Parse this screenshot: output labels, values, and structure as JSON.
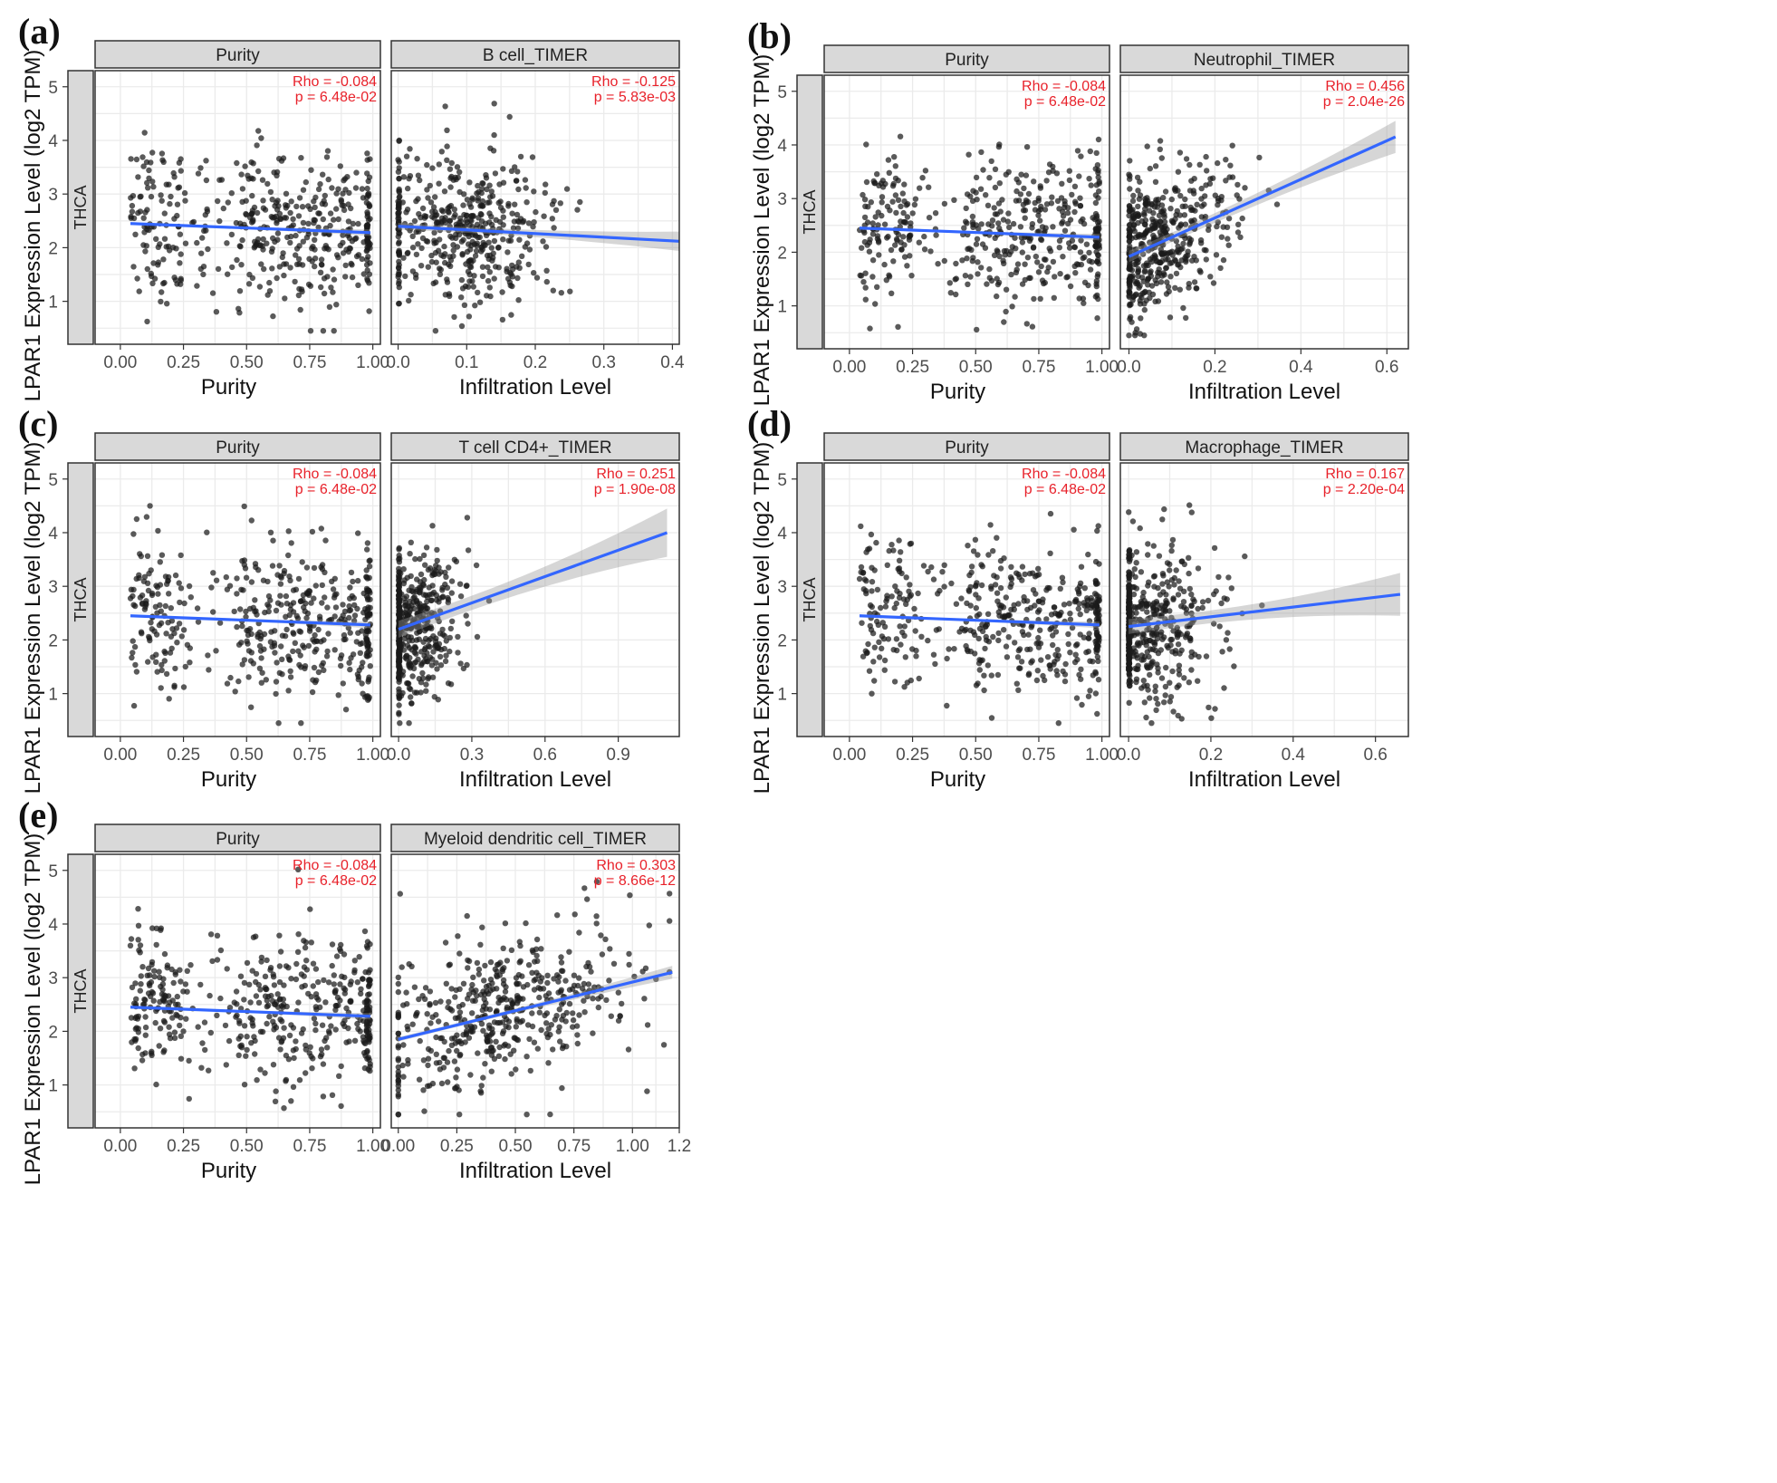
{
  "figure": {
    "row_strip_label": "THCA",
    "y_axis_title": "LPAR1 Expression Level (log2 TPM)",
    "colors": {
      "points": "#1a1a1a",
      "regression_line": "#3366ff",
      "confidence_band": "#999999",
      "stat_text": "#e8212a",
      "strip_fill": "#d9d9d9",
      "grid": "#ebebeb"
    }
  },
  "chart_data": [
    {
      "type": "scatter",
      "panel_label": "(a)",
      "y_ticks": [
        "1",
        "2",
        "3",
        "4",
        "5"
      ],
      "ylim": [
        0.2,
        5.3
      ],
      "grid": true,
      "facets": [
        {
          "title": "Purity",
          "xlabel": "Purity",
          "x_ticks": [
            "0.00",
            "0.25",
            "0.50",
            "0.75",
            "1.00"
          ],
          "xlim": [
            -0.1,
            1.03
          ],
          "x_tick_values": [
            0,
            0.25,
            0.5,
            0.75,
            1.0
          ],
          "rho": "Rho = -0.084",
          "p": "p = 6.48e-02",
          "fit": {
            "x0": 0.04,
            "y0": 2.45,
            "x1": 0.99,
            "y1": 2.28,
            "band": 0.06
          },
          "cluster": "purity"
        },
        {
          "title": "B cell_TIMER",
          "xlabel": "Infiltration Level",
          "x_ticks": [
            "0.0",
            "0.1",
            "0.2",
            "0.3",
            "0.4"
          ],
          "x_tick_values": [
            0,
            0.1,
            0.2,
            0.3,
            0.4
          ],
          "xlim": [
            -0.01,
            0.41
          ],
          "rho": "Rho = -0.125",
          "p": "p = 5.83e-03",
          "fit": {
            "x0": 0.0,
            "y0": 2.4,
            "x1": 0.41,
            "y1": 2.12,
            "band": 0.18
          },
          "cluster": "bcell"
        }
      ]
    },
    {
      "type": "scatter",
      "panel_label": "(b)",
      "y_ticks": [
        "1",
        "2",
        "3",
        "4",
        "5"
      ],
      "ylim": [
        0.2,
        5.3
      ],
      "grid": true,
      "facets": [
        {
          "title": "Purity",
          "xlabel": "Purity",
          "x_ticks": [
            "0.00",
            "0.25",
            "0.50",
            "0.75",
            "1.00"
          ],
          "x_tick_values": [
            0,
            0.25,
            0.5,
            0.75,
            1.0
          ],
          "xlim": [
            -0.1,
            1.03
          ],
          "rho": "Rho = -0.084",
          "p": "p = 6.48e-02",
          "fit": {
            "x0": 0.04,
            "y0": 2.45,
            "x1": 0.99,
            "y1": 2.28,
            "band": 0.06
          },
          "cluster": "purity"
        },
        {
          "title": "Neutrophil_TIMER",
          "xlabel": "Infiltration Level",
          "x_ticks": [
            "0.0",
            "0.2",
            "0.4",
            "0.6"
          ],
          "x_tick_values": [
            0,
            0.2,
            0.4,
            0.6
          ],
          "xlim": [
            -0.02,
            0.65
          ],
          "rho": "Rho = 0.456",
          "p": "p = 2.04e-26",
          "fit": {
            "x0": 0.0,
            "y0": 1.92,
            "x1": 0.62,
            "y1": 4.15,
            "band": 0.3
          },
          "cluster": "neutrophil"
        }
      ]
    },
    {
      "type": "scatter",
      "panel_label": "(c)",
      "y_ticks": [
        "1",
        "2",
        "3",
        "4",
        "5"
      ],
      "ylim": [
        0.2,
        5.3
      ],
      "grid": true,
      "facets": [
        {
          "title": "Purity",
          "xlabel": "Purity",
          "x_ticks": [
            "0.00",
            "0.25",
            "0.50",
            "0.75",
            "1.00"
          ],
          "x_tick_values": [
            0,
            0.25,
            0.5,
            0.75,
            1.0
          ],
          "xlim": [
            -0.1,
            1.03
          ],
          "rho": "Rho = -0.084",
          "p": "p = 6.48e-02",
          "fit": {
            "x0": 0.04,
            "y0": 2.45,
            "x1": 0.99,
            "y1": 2.28,
            "band": 0.06
          },
          "cluster": "purity"
        },
        {
          "title": "T cell CD4+_TIMER",
          "xlabel": "Infiltration Level",
          "x_ticks": [
            "0.0",
            "0.3",
            "0.6",
            "0.9"
          ],
          "x_tick_values": [
            0,
            0.3,
            0.6,
            0.9
          ],
          "xlim": [
            -0.03,
            1.15
          ],
          "rho": "Rho = 0.251",
          "p": "p = 1.90e-08",
          "fit": {
            "x0": 0.0,
            "y0": 2.2,
            "x1": 1.1,
            "y1": 4.0,
            "band": 0.45
          },
          "cluster": "cd4"
        }
      ]
    },
    {
      "type": "scatter",
      "panel_label": "(d)",
      "y_ticks": [
        "1",
        "2",
        "3",
        "4",
        "5"
      ],
      "ylim": [
        0.2,
        5.3
      ],
      "grid": true,
      "facets": [
        {
          "title": "Purity",
          "xlabel": "Purity",
          "x_ticks": [
            "0.00",
            "0.25",
            "0.50",
            "0.75",
            "1.00"
          ],
          "x_tick_values": [
            0,
            0.25,
            0.5,
            0.75,
            1.0
          ],
          "xlim": [
            -0.1,
            1.03
          ],
          "rho": "Rho = -0.084",
          "p": "p = 6.48e-02",
          "fit": {
            "x0": 0.04,
            "y0": 2.45,
            "x1": 0.99,
            "y1": 2.28,
            "band": 0.06
          },
          "cluster": "purity"
        },
        {
          "title": "Macrophage_TIMER",
          "xlabel": "Infiltration Level",
          "x_ticks": [
            "0.0",
            "0.2",
            "0.4",
            "0.6"
          ],
          "x_tick_values": [
            0,
            0.2,
            0.4,
            0.6
          ],
          "xlim": [
            -0.02,
            0.68
          ],
          "rho": "Rho = 0.167",
          "p": "p = 2.20e-04",
          "fit": {
            "x0": 0.0,
            "y0": 2.25,
            "x1": 0.66,
            "y1": 2.85,
            "band": 0.4
          },
          "cluster": "macrophage"
        }
      ]
    },
    {
      "type": "scatter",
      "panel_label": "(e)",
      "y_ticks": [
        "1",
        "2",
        "3",
        "4",
        "5"
      ],
      "ylim": [
        0.2,
        5.3
      ],
      "grid": true,
      "facets": [
        {
          "title": "Purity",
          "xlabel": "Purity",
          "x_ticks": [
            "0.00",
            "0.25",
            "0.50",
            "0.75",
            "1.00"
          ],
          "x_tick_values": [
            0,
            0.25,
            0.5,
            0.75,
            1.0
          ],
          "xlim": [
            -0.1,
            1.03
          ],
          "rho": "Rho = -0.084",
          "p": "p = 6.48e-02",
          "fit": {
            "x0": 0.04,
            "y0": 2.45,
            "x1": 0.99,
            "y1": 2.28,
            "band": 0.06
          },
          "cluster": "purity"
        },
        {
          "title": "Myeloid dendritic cell_TIMER",
          "xlabel": "Infiltration Level",
          "x_ticks": [
            "0.00",
            "0.25",
            "0.50",
            "0.75",
            "1.00",
            "1.2"
          ],
          "x_tick_values": [
            0,
            0.25,
            0.5,
            0.75,
            1.0,
            1.2
          ],
          "xlim": [
            -0.03,
            1.2
          ],
          "rho": "Rho = 0.303",
          "p": "p = 8.66e-12",
          "fit": {
            "x0": 0.0,
            "y0": 1.85,
            "x1": 1.17,
            "y1": 3.1,
            "band": 0.12
          },
          "cluster": "mdc"
        }
      ]
    }
  ]
}
